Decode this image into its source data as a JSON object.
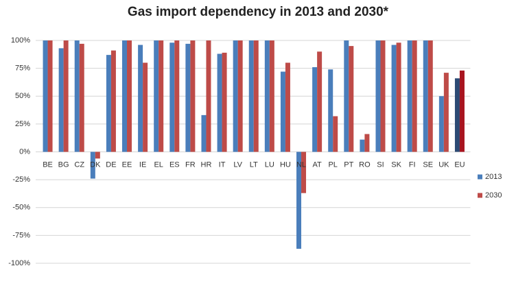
{
  "chart_data": {
    "type": "bar",
    "title": "Gas import dependency in 2013 and 2030*",
    "categories": [
      "BE",
      "BG",
      "CZ",
      "DK",
      "DE",
      "EE",
      "IE",
      "EL",
      "ES",
      "FR",
      "HR",
      "IT",
      "LV",
      "LT",
      "LU",
      "HU",
      "NL",
      "AT",
      "PL",
      "PT",
      "RO",
      "SI",
      "SK",
      "FI",
      "SE",
      "UK",
      "EU"
    ],
    "series": [
      {
        "name": "2013",
        "color": "#4a7ebb",
        "colors": [
          "#4a7ebb",
          "#4a7ebb",
          "#4a7ebb",
          "#4a7ebb",
          "#4a7ebb",
          "#4a7ebb",
          "#4a7ebb",
          "#4a7ebb",
          "#4a7ebb",
          "#4a7ebb",
          "#4a7ebb",
          "#4a7ebb",
          "#4a7ebb",
          "#4a7ebb",
          "#4a7ebb",
          "#4a7ebb",
          "#4a7ebb",
          "#4a7ebb",
          "#4a7ebb",
          "#4a7ebb",
          "#4a7ebb",
          "#4a7ebb",
          "#4a7ebb",
          "#4a7ebb",
          "#4a7ebb",
          "#4a7ebb",
          "#2c4a74"
        ],
        "values": [
          100,
          93,
          100,
          -24,
          87,
          100,
          96,
          100,
          98,
          97,
          33,
          88,
          100,
          100,
          100,
          72,
          -87,
          76,
          74,
          100,
          11,
          100,
          96,
          100,
          100,
          50,
          66
        ]
      },
      {
        "name": "2030",
        "color": "#be4b48",
        "colors": [
          "#be4b48",
          "#be4b48",
          "#be4b48",
          "#be4b48",
          "#be4b48",
          "#be4b48",
          "#be4b48",
          "#be4b48",
          "#be4b48",
          "#be4b48",
          "#be4b48",
          "#be4b48",
          "#be4b48",
          "#be4b48",
          "#be4b48",
          "#be4b48",
          "#be4b48",
          "#be4b48",
          "#be4b48",
          "#be4b48",
          "#be4b48",
          "#be4b48",
          "#be4b48",
          "#be4b48",
          "#be4b48",
          "#be4b48",
          "#a8141f"
        ],
        "values": [
          100,
          100,
          97,
          -6,
          91,
          100,
          80,
          100,
          100,
          100,
          100,
          89,
          100,
          100,
          100,
          80,
          -37,
          90,
          32,
          95,
          16,
          100,
          98,
          100,
          100,
          71,
          73
        ]
      }
    ],
    "ylim": [
      -100,
      100
    ],
    "yticks": [
      {
        "value": -100,
        "label": "-100%"
      },
      {
        "value": -75,
        "label": "-75%"
      },
      {
        "value": -50,
        "label": "-50%"
      },
      {
        "value": -25,
        "label": "-25%"
      },
      {
        "value": 0,
        "label": "0%"
      },
      {
        "value": 25,
        "label": "25%"
      },
      {
        "value": 50,
        "label": "50%"
      },
      {
        "value": 75,
        "label": "75%"
      },
      {
        "value": 100,
        "label": "100%"
      }
    ],
    "grid": true,
    "legend": "right"
  }
}
